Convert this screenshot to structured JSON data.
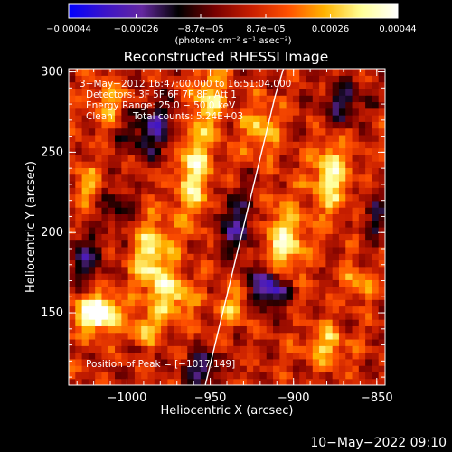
{
  "chart_data": {
    "type": "heatmap",
    "title": "Reconstructed RHESSI Image",
    "xlabel": "Heliocentric X (arcsec)",
    "ylabel": "Heliocentric Y (arcsec)",
    "xlim": [
      -1035,
      -845
    ],
    "ylim": [
      105,
      302
    ],
    "x_ticks": [
      -1000,
      -950,
      -900,
      -850
    ],
    "x_tick_labels": [
      "−1000",
      "−950",
      "−900",
      "−850"
    ],
    "y_ticks": [
      150,
      200,
      250,
      300
    ],
    "y_tick_labels": [
      "150",
      "200",
      "250",
      "300"
    ],
    "colorbar": {
      "min": -0.00044,
      "max": 0.00044,
      "ticks": [
        -0.00044,
        -0.00026,
        -8.7e-05,
        8.7e-05,
        0.00026,
        0.00044
      ],
      "tick_labels": [
        "−0.00044",
        "−0.00026",
        "−8.7e−05",
        "8.7e−05",
        "0.00026",
        "0.00044"
      ],
      "unit_label": "(photons cm⁻² s⁻¹ asec⁻²)",
      "colormap": [
        "#0000ff",
        "#3c14c8",
        "#6428a0",
        "#000000",
        "#780000",
        "#c81e00",
        "#ff5000",
        "#ffb400",
        "#ffff96",
        "#ffffff"
      ]
    },
    "annotations": {
      "time_range": "3−May−2012 16:47:00.000 to 16:51:04.000",
      "detectors": "Detectors: 3F 5F 6F 7F 8F, Att 1",
      "energy_range": "Energy Range: 25.0 − 50.0 keV",
      "method": "Clean",
      "total_counts": "Total counts: 5.24E+03",
      "peak_position": "Position of Peak = [−1017,149]"
    },
    "peak": {
      "x": -1017,
      "y": 149
    },
    "limb_curve": {
      "x": [
        -953,
        -946,
        -939,
        -932,
        -925,
        -918,
        -911,
        -906
      ],
      "y": [
        105,
        135,
        165,
        195,
        225,
        255,
        285,
        302
      ]
    },
    "hot_regions": [
      {
        "x": -1018,
        "y": 150,
        "sx": 9,
        "sy": 8,
        "a": 1.15
      },
      {
        "x": -985,
        "y": 185,
        "sx": 8,
        "sy": 16,
        "a": 0.75
      },
      {
        "x": -972,
        "y": 160,
        "sx": 9,
        "sy": 10,
        "a": 0.6
      },
      {
        "x": -990,
        "y": 140,
        "sx": 7,
        "sy": 6,
        "a": 0.55
      },
      {
        "x": -960,
        "y": 240,
        "sx": 8,
        "sy": 24,
        "a": 0.7
      },
      {
        "x": -950,
        "y": 285,
        "sx": 6,
        "sy": 12,
        "a": 0.6
      },
      {
        "x": -920,
        "y": 265,
        "sx": 8,
        "sy": 12,
        "a": 0.5
      },
      {
        "x": -905,
        "y": 195,
        "sx": 9,
        "sy": 16,
        "a": 0.7
      },
      {
        "x": -878,
        "y": 235,
        "sx": 8,
        "sy": 16,
        "a": 0.7
      },
      {
        "x": -935,
        "y": 155,
        "sx": 7,
        "sy": 8,
        "a": 0.5
      },
      {
        "x": -880,
        "y": 130,
        "sx": 9,
        "sy": 10,
        "a": 0.5
      },
      {
        "x": -1010,
        "y": 280,
        "sx": 9,
        "sy": 10,
        "a": 0.45
      },
      {
        "x": -860,
        "y": 170,
        "sx": 7,
        "sy": 8,
        "a": 0.45
      },
      {
        "x": -1025,
        "y": 230,
        "sx": 6,
        "sy": 9,
        "a": 0.4
      }
    ],
    "cold_regions": [
      {
        "x": -915,
        "y": 165,
        "sx": 8,
        "sy": 9,
        "a": 0.9
      },
      {
        "x": -985,
        "y": 265,
        "sx": 13,
        "sy": 12,
        "a": 0.6
      },
      {
        "x": -935,
        "y": 205,
        "sx": 9,
        "sy": 14,
        "a": 0.55
      },
      {
        "x": -1025,
        "y": 185,
        "sx": 8,
        "sy": 10,
        "a": 0.55
      },
      {
        "x": -955,
        "y": 115,
        "sx": 8,
        "sy": 8,
        "a": 0.6
      },
      {
        "x": -870,
        "y": 280,
        "sx": 9,
        "sy": 10,
        "a": 0.5
      },
      {
        "x": -1005,
        "y": 215,
        "sx": 7,
        "sy": 8,
        "a": 0.45
      },
      {
        "x": -850,
        "y": 210,
        "sx": 6,
        "sy": 10,
        "a": 0.4
      }
    ]
  },
  "footer": {
    "timestamp": "10−May−2022 09:10"
  }
}
